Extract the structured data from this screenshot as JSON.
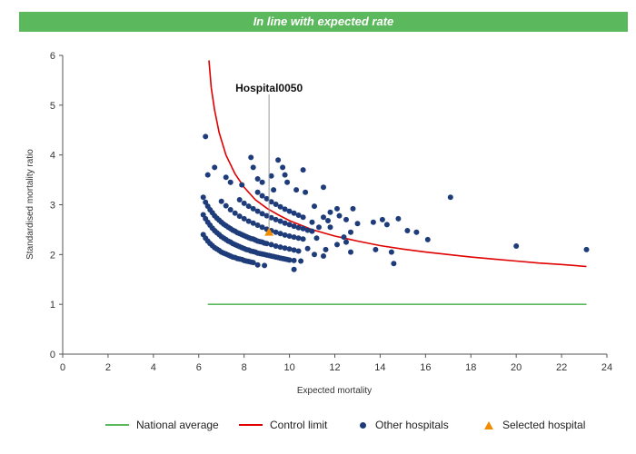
{
  "banner": {
    "text": "In line with expected rate",
    "color": "#5cb85c"
  },
  "chart_data": {
    "type": "scatter",
    "title": "",
    "xlabel": "Expected mortality",
    "ylabel": "Standardised mortality ratio",
    "xlim": [
      0,
      24
    ],
    "ylim": [
      0,
      6
    ],
    "xticks": [
      0,
      2,
      4,
      6,
      8,
      10,
      12,
      14,
      16,
      18,
      20,
      22,
      24
    ],
    "yticks": [
      0,
      1,
      2,
      3,
      4,
      5,
      6
    ],
    "grid": false,
    "legend_position": "bottom",
    "national_average": {
      "name": "National average",
      "color": "#5cb85c",
      "y": 1.0,
      "x_range": [
        6.4,
        23.1
      ]
    },
    "control_limit": {
      "name": "Control limit",
      "color": "#e00000",
      "points": [
        [
          6.45,
          5.9
        ],
        [
          6.55,
          5.35
        ],
        [
          6.7,
          4.9
        ],
        [
          6.9,
          4.45
        ],
        [
          7.2,
          4.0
        ],
        [
          7.6,
          3.62
        ],
        [
          8.0,
          3.35
        ],
        [
          8.5,
          3.1
        ],
        [
          9.0,
          2.93
        ],
        [
          9.5,
          2.8
        ],
        [
          10.0,
          2.68
        ],
        [
          11.0,
          2.5
        ],
        [
          12.0,
          2.37
        ],
        [
          13.0,
          2.27
        ],
        [
          14.0,
          2.18
        ],
        [
          15.0,
          2.11
        ],
        [
          16.0,
          2.05
        ],
        [
          17.0,
          2.0
        ],
        [
          18.0,
          1.95
        ],
        [
          19.0,
          1.91
        ],
        [
          20.0,
          1.87
        ],
        [
          21.0,
          1.83
        ],
        [
          22.0,
          1.8
        ],
        [
          23.1,
          1.76
        ]
      ]
    },
    "selected_hospital": {
      "name": "Selected hospital",
      "label": "Hospital0050",
      "color": "#f08c00",
      "x": 9.1,
      "y": 2.45
    },
    "other_hospitals": {
      "name": "Other hospitals",
      "color": "#1f3c7a",
      "points": [
        [
          6.2,
          2.4
        ],
        [
          6.3,
          2.33
        ],
        [
          6.4,
          2.27
        ],
        [
          6.5,
          2.22
        ],
        [
          6.6,
          2.18
        ],
        [
          6.7,
          2.14
        ],
        [
          6.8,
          2.11
        ],
        [
          6.9,
          2.08
        ],
        [
          7.0,
          2.05
        ],
        [
          7.1,
          2.03
        ],
        [
          7.2,
          2.01
        ],
        [
          7.3,
          1.99
        ],
        [
          7.4,
          1.97
        ],
        [
          7.5,
          1.95
        ],
        [
          7.6,
          1.94
        ],
        [
          7.7,
          1.92
        ],
        [
          7.8,
          1.91
        ],
        [
          7.9,
          1.9
        ],
        [
          8.0,
          1.88
        ],
        [
          8.1,
          1.87
        ],
        [
          8.2,
          1.86
        ],
        [
          8.3,
          1.85
        ],
        [
          8.4,
          1.84
        ],
        [
          8.6,
          1.79
        ],
        [
          8.9,
          1.78
        ],
        [
          6.2,
          2.8
        ],
        [
          6.3,
          2.72
        ],
        [
          6.4,
          2.65
        ],
        [
          6.5,
          2.59
        ],
        [
          6.6,
          2.53
        ],
        [
          6.7,
          2.48
        ],
        [
          6.8,
          2.44
        ],
        [
          6.9,
          2.4
        ],
        [
          7.0,
          2.36
        ],
        [
          7.1,
          2.33
        ],
        [
          7.2,
          2.3
        ],
        [
          7.3,
          2.27
        ],
        [
          7.4,
          2.25
        ],
        [
          7.5,
          2.22
        ],
        [
          7.6,
          2.2
        ],
        [
          7.7,
          2.18
        ],
        [
          7.8,
          2.16
        ],
        [
          7.9,
          2.14
        ],
        [
          8.0,
          2.12
        ],
        [
          8.1,
          2.1
        ],
        [
          8.2,
          2.09
        ],
        [
          8.3,
          2.07
        ],
        [
          8.4,
          2.06
        ],
        [
          8.5,
          2.05
        ],
        [
          8.6,
          2.03
        ],
        [
          8.7,
          2.02
        ],
        [
          8.8,
          2.01
        ],
        [
          8.9,
          2.0
        ],
        [
          9.0,
          1.99
        ],
        [
          9.1,
          1.98
        ],
        [
          9.2,
          1.97
        ],
        [
          9.3,
          1.96
        ],
        [
          9.4,
          1.95
        ],
        [
          9.5,
          1.94
        ],
        [
          9.6,
          1.93
        ],
        [
          9.7,
          1.92
        ],
        [
          9.8,
          1.91
        ],
        [
          9.9,
          1.9
        ],
        [
          10.0,
          1.89
        ],
        [
          10.2,
          1.88
        ],
        [
          10.5,
          1.87
        ],
        [
          10.2,
          1.7
        ],
        [
          6.2,
          3.15
        ],
        [
          6.3,
          3.05
        ],
        [
          6.4,
          2.97
        ],
        [
          6.5,
          2.9
        ],
        [
          6.6,
          2.84
        ],
        [
          6.7,
          2.78
        ],
        [
          6.8,
          2.73
        ],
        [
          6.9,
          2.69
        ],
        [
          7.0,
          2.65
        ],
        [
          7.1,
          2.61
        ],
        [
          7.2,
          2.58
        ],
        [
          7.3,
          2.55
        ],
        [
          7.4,
          2.52
        ],
        [
          7.5,
          2.49
        ],
        [
          7.6,
          2.47
        ],
        [
          7.7,
          2.44
        ],
        [
          7.8,
          2.42
        ],
        [
          7.9,
          2.4
        ],
        [
          8.0,
          2.38
        ],
        [
          8.1,
          2.36
        ],
        [
          8.2,
          2.34
        ],
        [
          8.3,
          2.32
        ],
        [
          8.4,
          2.31
        ],
        [
          8.5,
          2.29
        ],
        [
          8.6,
          2.27
        ],
        [
          8.7,
          2.26
        ],
        [
          8.8,
          2.25
        ],
        [
          8.9,
          2.23
        ],
        [
          9.0,
          2.22
        ],
        [
          9.2,
          2.2
        ],
        [
          9.4,
          2.17
        ],
        [
          9.6,
          2.15
        ],
        [
          9.8,
          2.13
        ],
        [
          10.0,
          2.11
        ],
        [
          10.2,
          2.09
        ],
        [
          10.4,
          2.07
        ],
        [
          7.0,
          3.07
        ],
        [
          7.2,
          2.98
        ],
        [
          7.4,
          2.9
        ],
        [
          7.6,
          2.83
        ],
        [
          7.8,
          2.77
        ],
        [
          8.0,
          2.72
        ],
        [
          8.2,
          2.67
        ],
        [
          8.4,
          2.63
        ],
        [
          8.6,
          2.59
        ],
        [
          8.8,
          2.55
        ],
        [
          9.0,
          2.51
        ],
        [
          9.2,
          2.48
        ],
        [
          9.4,
          2.45
        ],
        [
          9.6,
          2.42
        ],
        [
          9.8,
          2.39
        ],
        [
          10.0,
          2.37
        ],
        [
          10.2,
          2.35
        ],
        [
          10.4,
          2.33
        ],
        [
          10.6,
          2.31
        ],
        [
          7.8,
          3.1
        ],
        [
          8.0,
          3.03
        ],
        [
          8.2,
          2.97
        ],
        [
          8.4,
          2.92
        ],
        [
          8.6,
          2.87
        ],
        [
          8.8,
          2.82
        ],
        [
          9.0,
          2.78
        ],
        [
          9.2,
          2.74
        ],
        [
          9.4,
          2.7
        ],
        [
          9.6,
          2.67
        ],
        [
          9.8,
          2.63
        ],
        [
          10.0,
          2.6
        ],
        [
          10.2,
          2.57
        ],
        [
          10.4,
          2.54
        ],
        [
          10.6,
          2.52
        ],
        [
          10.8,
          2.49
        ],
        [
          11.0,
          2.47
        ],
        [
          8.6,
          3.25
        ],
        [
          8.8,
          3.18
        ],
        [
          9.0,
          3.12
        ],
        [
          9.2,
          3.06
        ],
        [
          9.4,
          3.01
        ],
        [
          9.6,
          2.96
        ],
        [
          9.8,
          2.91
        ],
        [
          10.0,
          2.87
        ],
        [
          10.2,
          2.83
        ],
        [
          10.4,
          2.79
        ],
        [
          10.6,
          2.75
        ],
        [
          6.3,
          4.37
        ],
        [
          6.4,
          3.6
        ],
        [
          6.7,
          3.75
        ],
        [
          7.2,
          3.55
        ],
        [
          7.4,
          3.45
        ],
        [
          7.9,
          3.4
        ],
        [
          8.3,
          3.95
        ],
        [
          8.4,
          3.75
        ],
        [
          8.6,
          3.52
        ],
        [
          8.8,
          3.45
        ],
        [
          9.2,
          3.58
        ],
        [
          9.5,
          3.9
        ],
        [
          9.7,
          3.75
        ],
        [
          9.3,
          3.3
        ],
        [
          9.8,
          3.6
        ],
        [
          9.9,
          3.45
        ],
        [
          10.3,
          3.3
        ],
        [
          10.6,
          3.7
        ],
        [
          10.7,
          3.25
        ],
        [
          11.1,
          2.97
        ],
        [
          11.5,
          3.35
        ],
        [
          11.0,
          2.65
        ],
        [
          11.3,
          2.55
        ],
        [
          11.5,
          2.75
        ],
        [
          11.7,
          2.68
        ],
        [
          11.8,
          2.55
        ],
        [
          11.8,
          2.85
        ],
        [
          12.1,
          2.92
        ],
        [
          12.2,
          2.78
        ],
        [
          12.5,
          2.7
        ],
        [
          12.8,
          2.92
        ],
        [
          13.0,
          2.62
        ],
        [
          12.1,
          2.2
        ],
        [
          12.4,
          2.35
        ],
        [
          12.5,
          2.25
        ],
        [
          12.7,
          2.45
        ],
        [
          11.1,
          2.0
        ],
        [
          11.5,
          1.97
        ],
        [
          11.2,
          2.33
        ],
        [
          10.8,
          2.12
        ],
        [
          11.6,
          2.1
        ],
        [
          12.7,
          2.05
        ],
        [
          13.7,
          2.65
        ],
        [
          13.8,
          2.1
        ],
        [
          14.1,
          2.7
        ],
        [
          14.3,
          2.6
        ],
        [
          14.8,
          2.72
        ],
        [
          14.5,
          2.05
        ],
        [
          14.6,
          1.82
        ],
        [
          15.2,
          2.48
        ],
        [
          15.6,
          2.45
        ],
        [
          16.1,
          2.3
        ],
        [
          17.1,
          3.15
        ],
        [
          20.0,
          2.17
        ],
        [
          23.1,
          2.1
        ]
      ]
    }
  },
  "legend": [
    {
      "label": "National average",
      "kind": "line",
      "color": "#5cb85c"
    },
    {
      "label": "Control limit",
      "kind": "line",
      "color": "#e00000"
    },
    {
      "label": "Other hospitals",
      "kind": "dot",
      "color": "#1f3c7a"
    },
    {
      "label": "Selected hospital",
      "kind": "triangle",
      "color": "#f08c00"
    }
  ]
}
